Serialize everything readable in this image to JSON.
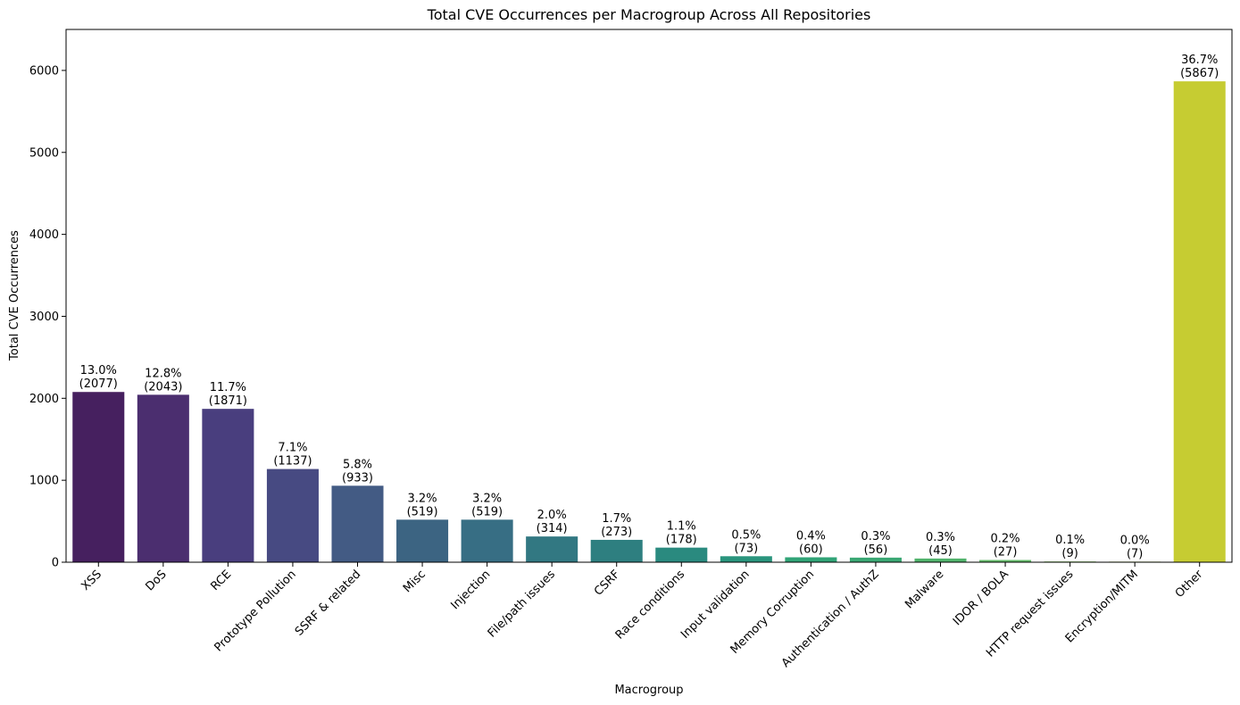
{
  "chart_data": {
    "type": "bar",
    "title": "Total CVE Occurrences per Macrogroup Across All Repositories",
    "xlabel": "Macrogroup",
    "ylabel": "Total CVE Occurrences",
    "ylim": [
      0,
      6500
    ],
    "yticks": [
      0,
      1000,
      2000,
      3000,
      4000,
      5000,
      6000
    ],
    "grid": false,
    "categories": [
      "XSS",
      "DoS",
      "RCE",
      "Prototype Pollution",
      "SSRF & related",
      "Misc",
      "Injection",
      "File/path issues",
      "CSRF",
      "Race conditions",
      "Input validation",
      "Memory Corruption",
      "Authentication / AuthZ",
      "Malware",
      "IDOR / BOLA",
      "HTTP request issues",
      "Encryption/MITM",
      "Other"
    ],
    "values": [
      2077,
      2043,
      1871,
      1137,
      933,
      519,
      519,
      314,
      273,
      178,
      73,
      60,
      56,
      45,
      27,
      9,
      7,
      5867
    ],
    "percent_labels": [
      "13.0%",
      "12.8%",
      "11.7%",
      "7.1%",
      "5.8%",
      "3.2%",
      "3.2%",
      "2.0%",
      "1.7%",
      "1.1%",
      "0.5%",
      "0.4%",
      "0.3%",
      "0.3%",
      "0.2%",
      "0.1%",
      "0.0%",
      "36.7%"
    ],
    "count_labels": [
      "(2077)",
      "(2043)",
      "(1871)",
      "(1137)",
      "(933)",
      "(519)",
      "(519)",
      "(314)",
      "(273)",
      "(178)",
      "(73)",
      "(60)",
      "(56)",
      "(45)",
      "(27)",
      "(9)",
      "(7)",
      "(5867)"
    ],
    "colors": [
      "#46205f",
      "#4b2e6f",
      "#493e7e",
      "#474a82",
      "#435b84",
      "#3c6482",
      "#376e84",
      "#327882",
      "#2e7f80",
      "#2a8a7f",
      "#2a957d",
      "#31a477",
      "#3ba874",
      "#51b46c",
      "#62bb68",
      "#81c35c",
      "#a4c54a",
      "#c6cc32"
    ]
  }
}
